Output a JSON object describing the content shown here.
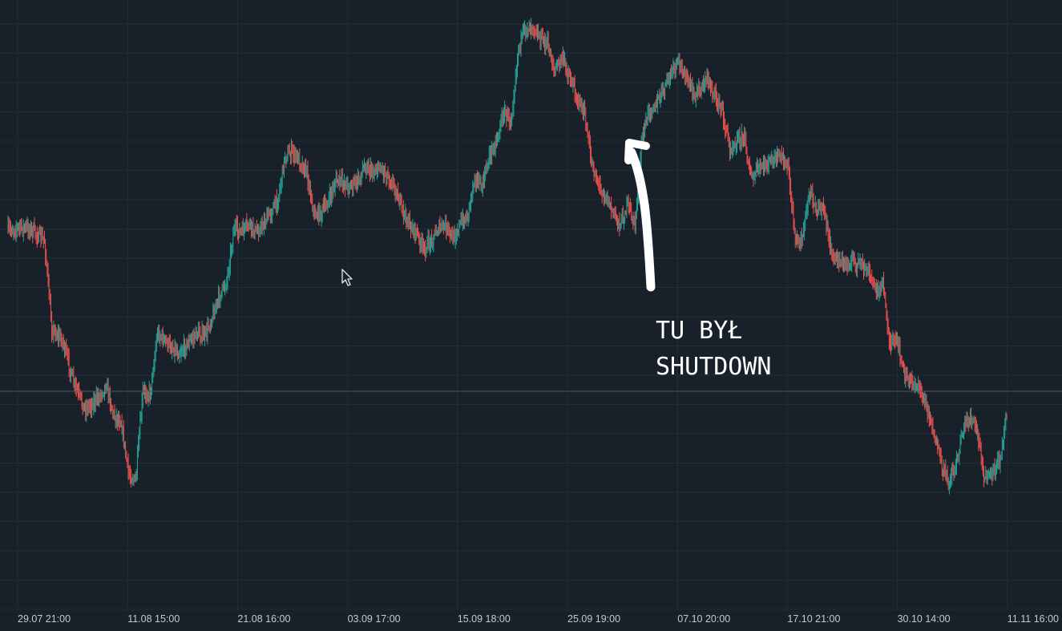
{
  "chart_data": {
    "type": "candlestick",
    "title": "",
    "xlabel": "",
    "ylabel": "",
    "grid": true,
    "up_color": "#26a69a",
    "down_color": "#ef5350",
    "background_color": "#18202a",
    "grid_color": "#232d38",
    "crosshair_color": "#4a5866",
    "x_tick_labels": [
      "29.07 21:00",
      "11.08 15:00",
      "21.08 16:00",
      "03.09 17:00",
      "15.09 18:00",
      "25.09 19:00",
      "07.10 20:00",
      "17.10 21:00",
      "30.10 14:00",
      "11.11 16:00"
    ],
    "price_path": [
      [
        0,
        287
      ],
      [
        3,
        284
      ],
      [
        6,
        285
      ],
      [
        8,
        293
      ],
      [
        10,
        300
      ],
      [
        12,
        410
      ],
      [
        15,
        425
      ],
      [
        18,
        478
      ],
      [
        21,
        510
      ],
      [
        24,
        500
      ],
      [
        27,
        480
      ],
      [
        29,
        518
      ],
      [
        31,
        525
      ],
      [
        33,
        590
      ],
      [
        35,
        600
      ],
      [
        37,
        490
      ],
      [
        39,
        490
      ],
      [
        41,
        415
      ],
      [
        44,
        430
      ],
      [
        47,
        440
      ],
      [
        50,
        425
      ],
      [
        52,
        415
      ],
      [
        54,
        420
      ],
      [
        56,
        395
      ],
      [
        58,
        370
      ],
      [
        60,
        350
      ],
      [
        62,
        285
      ],
      [
        64,
        290
      ],
      [
        66,
        280
      ],
      [
        68,
        290
      ],
      [
        70,
        280
      ],
      [
        72,
        265
      ],
      [
        74,
        250
      ],
      [
        76,
        195
      ],
      [
        78,
        190
      ],
      [
        80,
        200
      ],
      [
        82,
        215
      ],
      [
        84,
        268
      ],
      [
        86,
        265
      ],
      [
        88,
        250
      ],
      [
        90,
        225
      ],
      [
        92,
        228
      ],
      [
        94,
        232
      ],
      [
        96,
        226
      ],
      [
        98,
        205
      ],
      [
        100,
        215
      ],
      [
        102,
        208
      ],
      [
        104,
        218
      ],
      [
        106,
        232
      ],
      [
        108,
        260
      ],
      [
        110,
        280
      ],
      [
        112,
        290
      ],
      [
        114,
        312
      ],
      [
        116,
        300
      ],
      [
        118,
        285
      ],
      [
        120,
        282
      ],
      [
        122,
        298
      ],
      [
        124,
        280
      ],
      [
        126,
        270
      ],
      [
        128,
        220
      ],
      [
        130,
        235
      ],
      [
        132,
        195
      ],
      [
        134,
        175
      ],
      [
        136,
        140
      ],
      [
        138,
        150
      ],
      [
        140,
        60
      ],
      [
        142,
        35
      ],
      [
        144,
        30
      ],
      [
        146,
        48
      ],
      [
        148,
        55
      ],
      [
        150,
        88
      ],
      [
        152,
        72
      ],
      [
        154,
        95
      ],
      [
        156,
        120
      ],
      [
        158,
        140
      ],
      [
        160,
        200
      ],
      [
        162,
        230
      ],
      [
        164,
        245
      ],
      [
        166,
        265
      ],
      [
        168,
        280
      ],
      [
        170,
        255
      ],
      [
        172,
        280
      ],
      [
        174,
        172
      ],
      [
        176,
        135
      ],
      [
        178,
        130
      ],
      [
        180,
        110
      ],
      [
        182,
        90
      ],
      [
        184,
        78
      ],
      [
        186,
        95
      ],
      [
        188,
        120
      ],
      [
        190,
        110
      ],
      [
        192,
        98
      ],
      [
        194,
        120
      ],
      [
        196,
        140
      ],
      [
        198,
        185
      ],
      [
        200,
        175
      ],
      [
        202,
        170
      ],
      [
        204,
        225
      ],
      [
        206,
        210
      ],
      [
        208,
        205
      ],
      [
        210,
        200
      ],
      [
        212,
        195
      ],
      [
        214,
        210
      ],
      [
        216,
        300
      ],
      [
        218,
        295
      ],
      [
        220,
        238
      ],
      [
        222,
        260
      ],
      [
        224,
        262
      ],
      [
        226,
        320
      ],
      [
        228,
        325
      ],
      [
        230,
        330
      ],
      [
        232,
        326
      ],
      [
        234,
        330
      ],
      [
        236,
        340
      ],
      [
        238,
        360
      ],
      [
        240,
        355
      ],
      [
        242,
        430
      ],
      [
        244,
        425
      ],
      [
        246,
        470
      ],
      [
        248,
        475
      ],
      [
        250,
        485
      ],
      [
        252,
        505
      ],
      [
        254,
        540
      ],
      [
        256,
        580
      ],
      [
        258,
        600
      ],
      [
        260,
        580
      ],
      [
        262,
        535
      ],
      [
        264,
        520
      ],
      [
        266,
        540
      ],
      [
        268,
        600
      ],
      [
        270,
        590
      ],
      [
        272,
        575
      ],
      [
        274,
        515
      ]
    ],
    "annotation": {
      "lines": [
        "TU BYŁ",
        "SHUTDOWN"
      ],
      "arrow": "points up to the candle near 25.09-07.10 peak"
    }
  }
}
